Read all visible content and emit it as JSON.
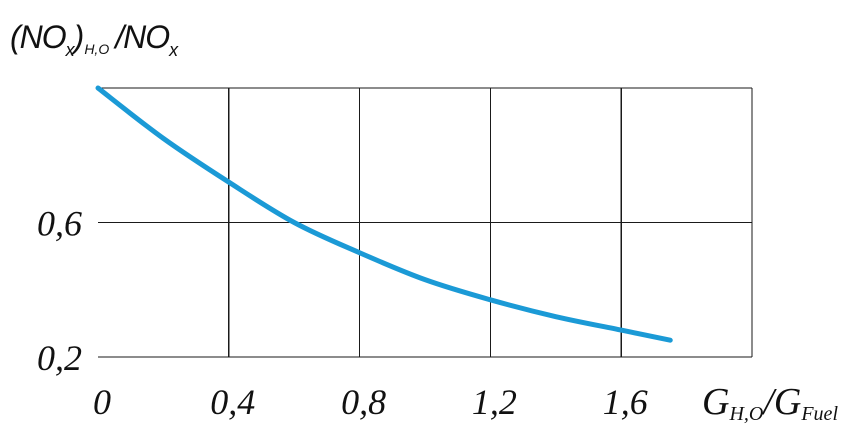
{
  "chart_data": {
    "type": "line",
    "title": "",
    "ylabel": {
      "open": "(NO",
      "sub_x1": "x",
      "close": ")",
      "sub_h2o": "H,O",
      "slash_no": "/NO",
      "sub_x2": "x"
    },
    "xlabel": {
      "g1": "G",
      "sub_h2o": "H,O",
      "slash_g": "/G",
      "sub_fuel": "Fuel"
    },
    "xlim": [
      0,
      2.0
    ],
    "ylim": [
      0.2,
      1.0
    ],
    "xticks": [
      {
        "value": 0,
        "label": "0"
      },
      {
        "value": 0.4,
        "label": "0,4"
      },
      {
        "value": 0.8,
        "label": "0,8"
      },
      {
        "value": 1.2,
        "label": "1,2"
      },
      {
        "value": 1.6,
        "label": "1,6"
      }
    ],
    "yticks": [
      {
        "value": 0.6,
        "label": "0,6"
      },
      {
        "value": 0.2,
        "label": "0,2"
      }
    ],
    "xgrid": [
      0.4,
      0.8,
      1.2,
      1.6,
      2.0
    ],
    "ygrid": [
      0.2,
      0.6,
      1.0
    ],
    "grid": true,
    "legend": "none",
    "grid_color": "#1a1a1a",
    "series": [
      {
        "x": [
          0,
          0.2,
          0.4,
          0.6,
          0.8,
          1.0,
          1.2,
          1.4,
          1.6,
          1.75
        ],
        "y": [
          1.0,
          0.85,
          0.72,
          0.6,
          0.51,
          0.43,
          0.37,
          0.32,
          0.28,
          0.25
        ],
        "color": "#1b9ad6"
      }
    ]
  }
}
